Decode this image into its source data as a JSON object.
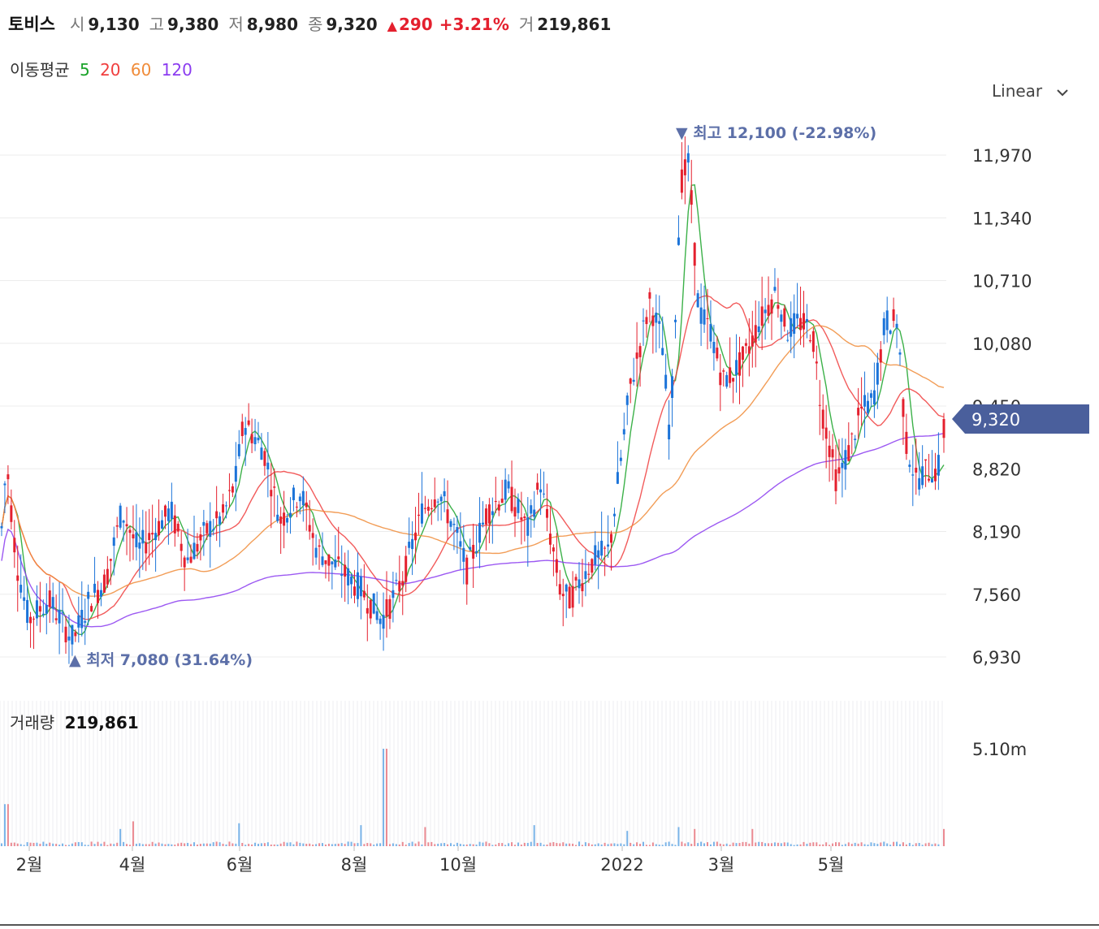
{
  "header": {
    "name": "토비스",
    "open_label": "시",
    "open": "9,130",
    "high_label": "고",
    "high": "9,380",
    "low_label": "저",
    "low": "8,980",
    "close_label": "종",
    "close": "9,320",
    "change_arrow": "▲",
    "change": "290",
    "change_pct": "+3.21%",
    "volume_label": "거",
    "volume": "219,861"
  },
  "moving_average": {
    "label": "이동평균",
    "periods": [
      {
        "label": "5",
        "color": "#1aa329"
      },
      {
        "label": "20",
        "color": "#f03e3e"
      },
      {
        "label": "60",
        "color": "#f08c3a"
      },
      {
        "label": "120",
        "color": "#8b3cf0"
      }
    ]
  },
  "scale_select": {
    "value": "Linear",
    "icon": "chevron-down-icon"
  },
  "chart_data": {
    "type": "candlestick",
    "y_ticks": [
      "11,970",
      "11,340",
      "10,710",
      "10,080",
      "9,450",
      "8,820",
      "8,190",
      "7,560",
      "6,930"
    ],
    "y_tick_values": [
      11970,
      11340,
      10710,
      10080,
      9450,
      8820,
      8190,
      7560,
      6930
    ],
    "ylim": [
      6850,
      12180
    ],
    "current_price": {
      "label": "9,320",
      "value": 9320,
      "color": "#4a5f9c"
    },
    "max_annotation": {
      "text": "▼ 최고 12,100 (-22.98%)",
      "value": 12100
    },
    "min_annotation": {
      "text": "▲ 최저 7,080 (31.64%)",
      "value": 7080
    },
    "x_ticks": [
      "2월",
      "4월",
      "6월",
      "8월",
      "10월",
      "2022",
      "3월",
      "5월"
    ],
    "up_color": "#e4202e",
    "down_color": "#1c74d9",
    "price_path": [
      [
        0,
        8000
      ],
      [
        8,
        8900
      ],
      [
        20,
        7900
      ],
      [
        35,
        7300
      ],
      [
        60,
        7500
      ],
      [
        90,
        7100
      ],
      [
        110,
        7500
      ],
      [
        130,
        7700
      ],
      [
        150,
        8400
      ],
      [
        170,
        8000
      ],
      [
        190,
        8200
      ],
      [
        210,
        8400
      ],
      [
        230,
        7900
      ],
      [
        255,
        8200
      ],
      [
        275,
        8350
      ],
      [
        290,
        8700
      ],
      [
        300,
        9300
      ],
      [
        325,
        9000
      ],
      [
        345,
        8300
      ],
      [
        370,
        8600
      ],
      [
        390,
        8000
      ],
      [
        420,
        7800
      ],
      [
        445,
        7600
      ],
      [
        470,
        7300
      ],
      [
        495,
        7700
      ],
      [
        520,
        8400
      ],
      [
        540,
        8600
      ],
      [
        560,
        8200
      ],
      [
        575,
        7800
      ],
      [
        600,
        8400
      ],
      [
        625,
        8600
      ],
      [
        650,
        8200
      ],
      [
        665,
        8700
      ],
      [
        690,
        7600
      ],
      [
        700,
        7500
      ],
      [
        730,
        7900
      ],
      [
        750,
        8000
      ],
      [
        775,
        9600
      ],
      [
        800,
        10500
      ],
      [
        815,
        10100
      ],
      [
        825,
        9100
      ],
      [
        838,
        11700
      ],
      [
        848,
        11900
      ],
      [
        860,
        10400
      ],
      [
        875,
        10200
      ],
      [
        890,
        9700
      ],
      [
        905,
        9800
      ],
      [
        920,
        10000
      ],
      [
        935,
        10300
      ],
      [
        955,
        10600
      ],
      [
        970,
        10200
      ],
      [
        985,
        10300
      ],
      [
        1000,
        10200
      ],
      [
        1010,
        9500
      ],
      [
        1030,
        8700
      ],
      [
        1045,
        9000
      ],
      [
        1060,
        9400
      ],
      [
        1075,
        9500
      ],
      [
        1090,
        10300
      ],
      [
        1105,
        10300
      ],
      [
        1115,
        9100
      ],
      [
        1128,
        8700
      ],
      [
        1140,
        8800
      ],
      [
        1155,
        8800
      ],
      [
        1162,
        9320
      ]
    ],
    "volume": {
      "label": "거래량",
      "value": "219,861",
      "axis_tick": "5.10m",
      "axis_tick_value": 5100000,
      "spikes": [
        [
          8,
          2200000
        ],
        [
          148,
          900000
        ],
        [
          164,
          1300000
        ],
        [
          293,
          1200000
        ],
        [
          446,
          1100000
        ],
        [
          474,
          5100000
        ],
        [
          525,
          1000000
        ],
        [
          658,
          1100000
        ],
        [
          771,
          800000
        ],
        [
          834,
          1000000
        ],
        [
          857,
          900000
        ],
        [
          926,
          900000
        ],
        [
          1163,
          900000
        ]
      ]
    }
  }
}
